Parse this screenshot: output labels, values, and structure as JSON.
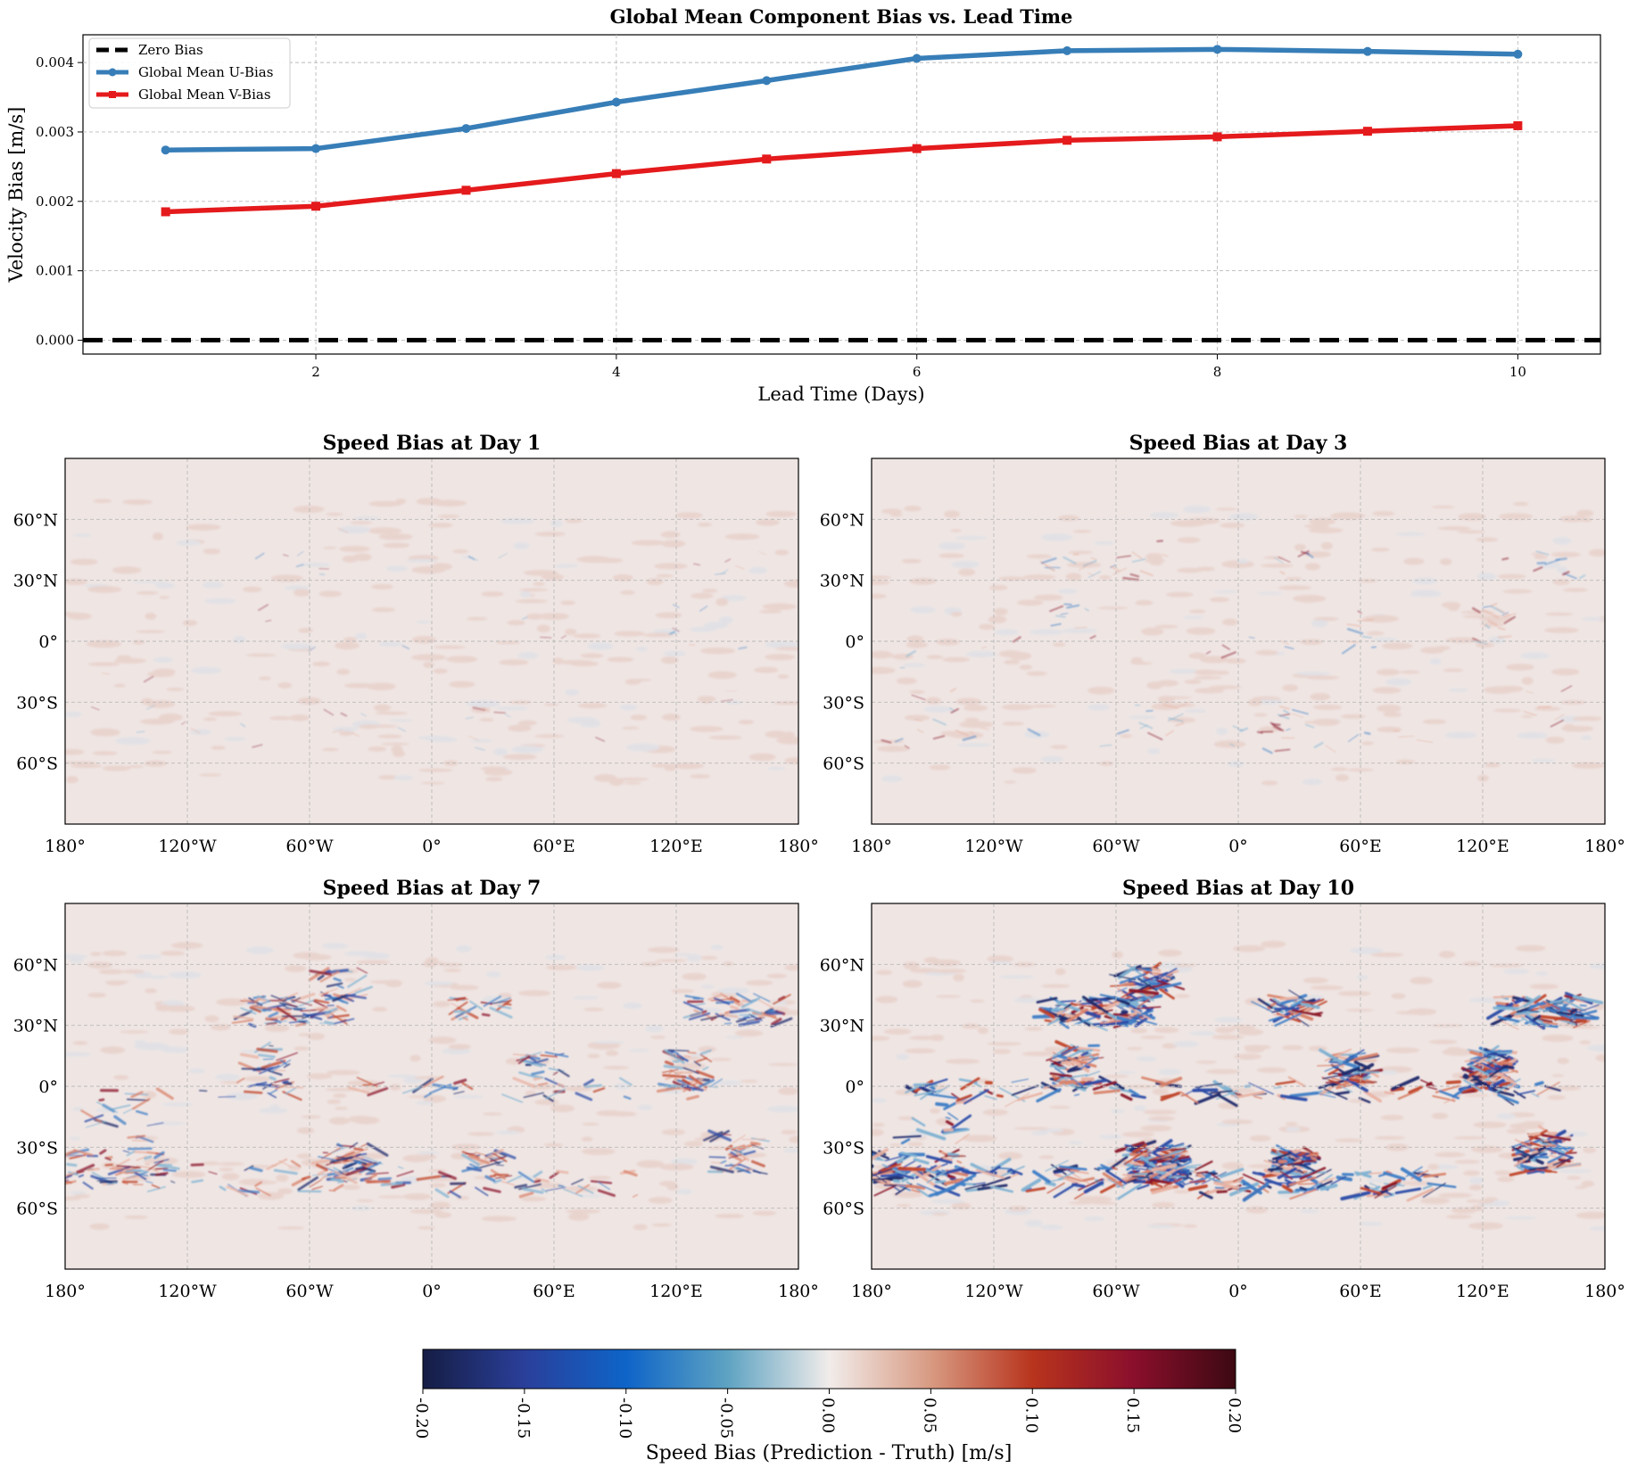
{
  "chart_data": [
    {
      "type": "line",
      "title": "Global Mean Component Bias vs. Lead Time",
      "xlabel": "Lead Time (Days)",
      "ylabel": "Velocity Bias [m/s]",
      "xlim": [
        0.45,
        10.55
      ],
      "ylim": [
        -0.0002,
        0.0044
      ],
      "xticks": [
        "2",
        "4",
        "6",
        "8",
        "10"
      ],
      "yticks": [
        "0.000",
        "0.001",
        "0.002",
        "0.003",
        "0.004"
      ],
      "grid": true,
      "legend_position": "top-left",
      "x": [
        1,
        2,
        3,
        4,
        5,
        6,
        7,
        8,
        9,
        10
      ],
      "series": [
        {
          "name": "Zero Bias",
          "values": [
            0,
            0,
            0,
            0,
            0,
            0,
            0,
            0,
            0,
            0
          ],
          "color": "#000000",
          "style": "dashed"
        },
        {
          "name": "Global Mean U-Bias",
          "values": [
            0.00274,
            0.00276,
            0.00305,
            0.00343,
            0.00374,
            0.00406,
            0.00417,
            0.00419,
            0.00416,
            0.00412
          ],
          "color": "#377eb8",
          "marker": "circle"
        },
        {
          "name": "Global Mean V-Bias",
          "values": [
            0.00185,
            0.00193,
            0.00216,
            0.0024,
            0.00261,
            0.00276,
            0.00288,
            0.00293,
            0.00301,
            0.00309
          ],
          "color": "#e41a1c",
          "marker": "square"
        }
      ]
    },
    {
      "type": "heatmap",
      "title": "Speed Bias at Day 1",
      "lead_day": 1,
      "xticks": [
        "180°",
        "120°W",
        "60°W",
        "0°",
        "60°E",
        "120°E",
        "180°"
      ],
      "yticks": [
        "60°N",
        "30°N",
        "0°",
        "30°S",
        "60°S"
      ]
    },
    {
      "type": "heatmap",
      "title": "Speed Bias at Day 3",
      "lead_day": 3,
      "xticks": [
        "180°",
        "120°W",
        "60°W",
        "0°",
        "60°E",
        "120°E",
        "180°"
      ],
      "yticks": [
        "60°N",
        "30°N",
        "0°",
        "30°S",
        "60°S"
      ]
    },
    {
      "type": "heatmap",
      "title": "Speed Bias at Day 7",
      "lead_day": 7,
      "xticks": [
        "180°",
        "120°W",
        "60°W",
        "0°",
        "60°E",
        "120°E",
        "180°"
      ],
      "yticks": [
        "60°N",
        "30°N",
        "0°",
        "30°S",
        "60°S"
      ]
    },
    {
      "type": "heatmap",
      "title": "Speed Bias at Day 10",
      "lead_day": 10,
      "xticks": [
        "180°",
        "120°W",
        "60°W",
        "0°",
        "60°E",
        "120°E",
        "180°"
      ],
      "yticks": [
        "60°N",
        "30°N",
        "0°",
        "30°S",
        "60°S"
      ]
    }
  ],
  "colorbar": {
    "label": "Speed Bias (Prediction - Truth) [m/s]",
    "range": [
      -0.2,
      0.2
    ],
    "ticks": [
      "-0.20",
      "-0.15",
      "-0.10",
      "-0.05",
      "0.00",
      "0.05",
      "0.10",
      "0.15",
      "0.20"
    ],
    "colors": [
      "#151d44",
      "#2a3f9a",
      "#0e64c8",
      "#5ea3c2",
      "#f1ecea",
      "#d89a82",
      "#b8341d",
      "#8a0f2c",
      "#3c0912"
    ]
  }
}
